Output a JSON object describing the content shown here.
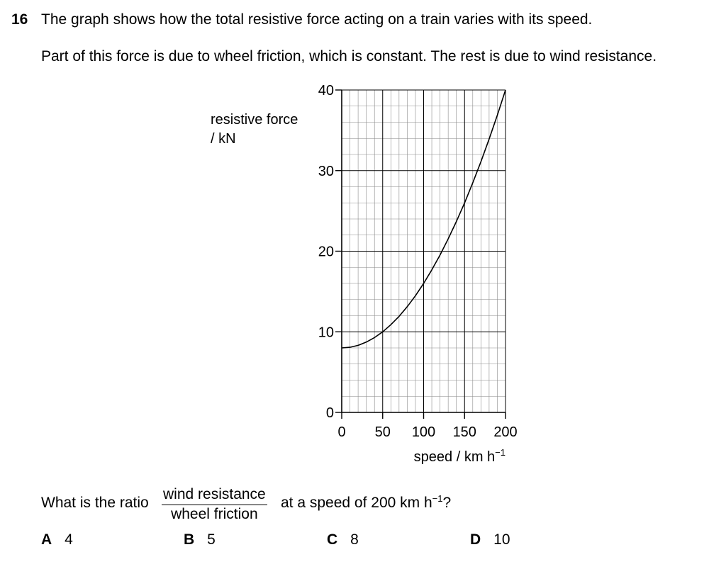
{
  "question": {
    "number": "16",
    "intro": "The graph shows how the total resistive force acting on a train varies with its speed.",
    "detail": "Part of this force is due to wheel friction, which is constant. The rest is due to wind resistance.",
    "prompt_start": "What is the ratio",
    "fraction_numerator": "wind resistance",
    "fraction_denominator": "wheel friction",
    "prompt_end": "at a speed of 200 km h",
    "prompt_end_sup": "−1",
    "prompt_end_tail": "?"
  },
  "options": [
    {
      "letter": "A",
      "value": "4"
    },
    {
      "letter": "B",
      "value": "5"
    },
    {
      "letter": "C",
      "value": "8"
    },
    {
      "letter": "D",
      "value": "10"
    }
  ],
  "chart_data": {
    "type": "line",
    "ylabel_line1": "resistive force",
    "ylabel_line2": "/ kN",
    "xlabel": "speed / km h",
    "xlabel_sup": "−1",
    "xlim": [
      0,
      200
    ],
    "ylim": [
      0,
      40
    ],
    "xticks": [
      0,
      50,
      100,
      150,
      200
    ],
    "yticks": [
      0,
      10,
      20,
      30,
      40
    ],
    "grid": true,
    "grid_minor_x": 10,
    "grid_minor_y": 2,
    "series": [
      {
        "x": [
          0,
          10,
          20,
          30,
          40,
          50,
          60,
          70,
          80,
          90,
          100,
          110,
          120,
          130,
          140,
          150,
          160,
          170,
          180,
          190,
          200
        ],
        "y": [
          8,
          8.08,
          8.32,
          8.72,
          9.28,
          10,
          10.88,
          11.92,
          13.12,
          14.48,
          16,
          17.68,
          19.52,
          21.52,
          23.68,
          26,
          28.48,
          31.12,
          33.92,
          36.88,
          40
        ]
      }
    ]
  }
}
